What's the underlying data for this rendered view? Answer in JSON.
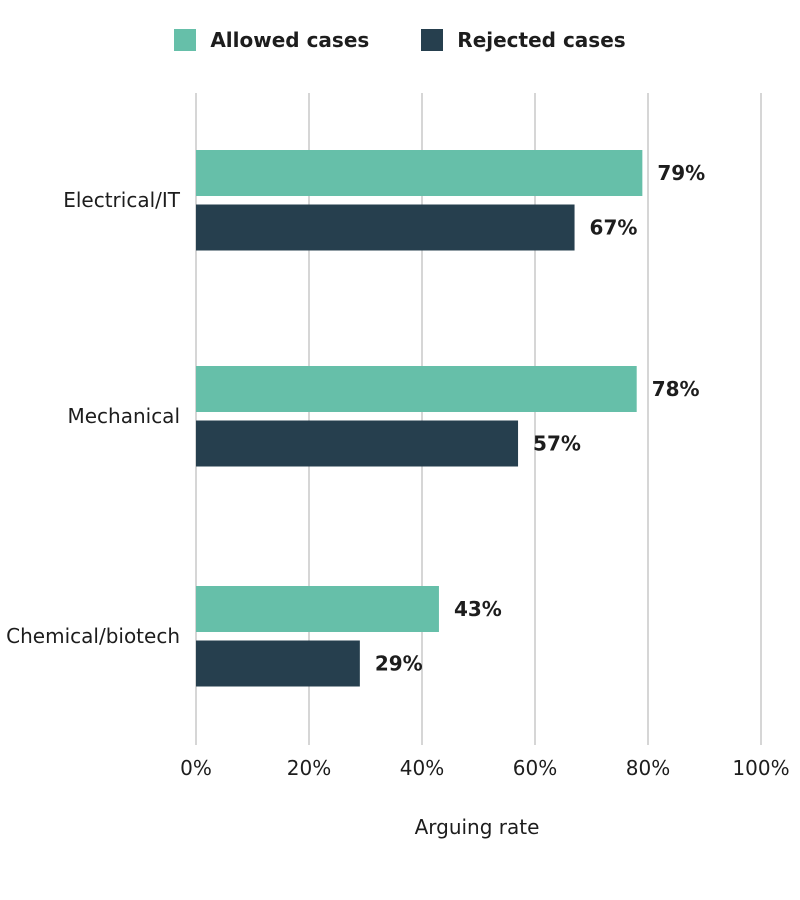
{
  "chart_data": {
    "type": "bar",
    "orientation": "horizontal",
    "categories": [
      "Electrical/IT",
      "Mechanical",
      "Chemical/biotech"
    ],
    "series": [
      {
        "name": "Allowed cases",
        "values": [
          79,
          78,
          43
        ],
        "color": "#66bfa9"
      },
      {
        "name": "Rejected cases",
        "values": [
          67,
          57,
          29
        ],
        "color": "#263f4e"
      }
    ],
    "value_labels": {
      "Allowed cases": [
        "79%",
        "78%",
        "43%"
      ],
      "Rejected cases": [
        "67%",
        "57%",
        "29%"
      ]
    },
    "xlim": [
      0,
      100
    ],
    "xticks": [
      0,
      20,
      40,
      60,
      80,
      100
    ],
    "xtick_labels": [
      "0%",
      "20%",
      "40%",
      "60%",
      "80%",
      "100%"
    ],
    "xlabel": "Arguing rate",
    "grid": true,
    "legend_position": "top-center"
  },
  "colors": {
    "grid": "#c8c8c8",
    "text": "#1d1d1d"
  }
}
